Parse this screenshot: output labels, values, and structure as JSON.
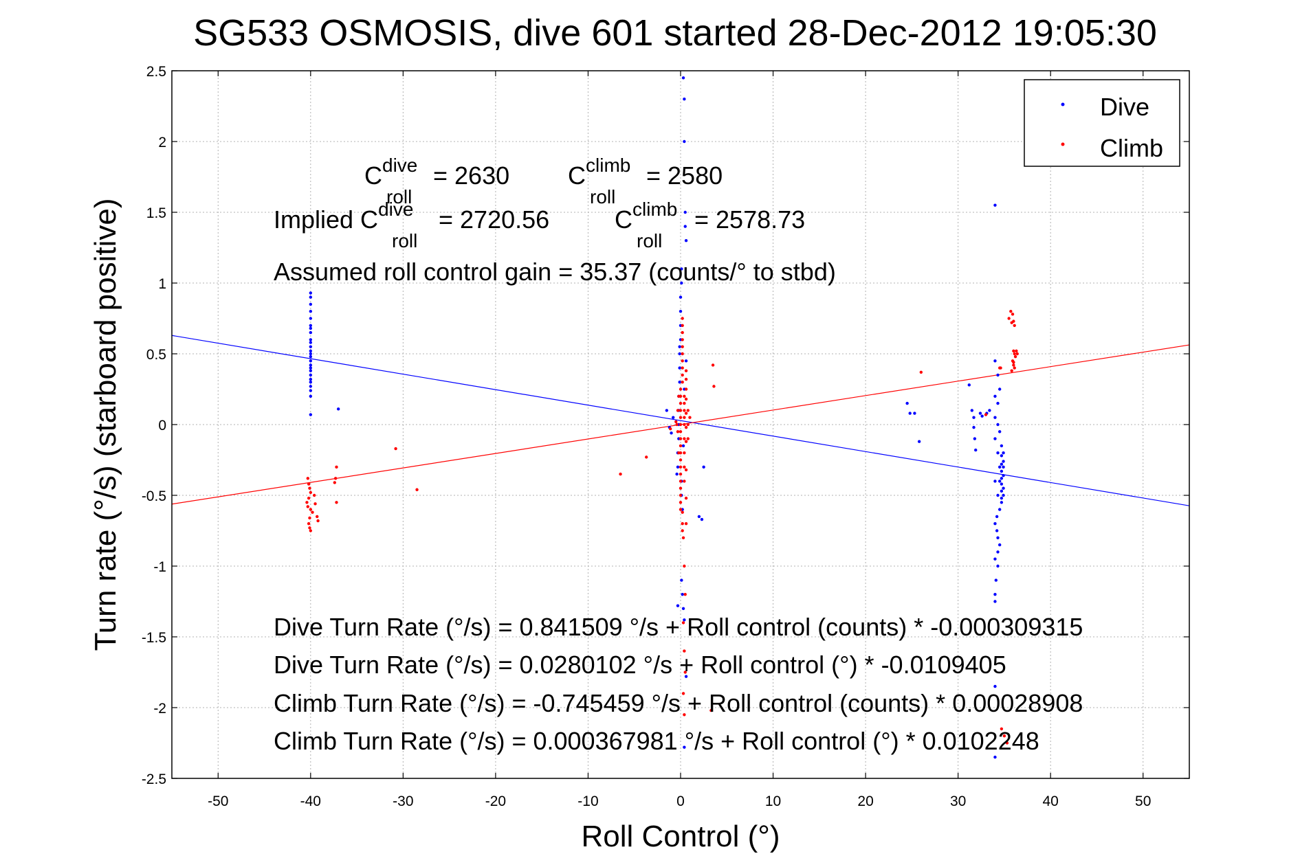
{
  "chart_data": {
    "type": "scatter",
    "title": "SG533 OSMOSIS, dive 601 started 28-Dec-2012 19:05:30",
    "xlabel": "Roll Control (°)",
    "ylabel": "Turn rate (°/s)  (starboard positive)",
    "xlim": [
      -55,
      55
    ],
    "ylim": [
      -2.5,
      2.5
    ],
    "xticks": [
      -50,
      -40,
      -30,
      -20,
      -10,
      0,
      10,
      20,
      30,
      40,
      50
    ],
    "yticks": [
      -2.5,
      -2,
      -1.5,
      -1,
      -0.5,
      0,
      0.5,
      1,
      1.5,
      2,
      2.5
    ],
    "ytick_labels": [
      "-2.5",
      "-2",
      "-1.5",
      "-1",
      "-0.5",
      "0",
      "0.5",
      "1",
      "1.5",
      "2",
      "2.5"
    ],
    "grid": true,
    "legend_position": "top-right",
    "series": [
      {
        "name": "Dive",
        "color": "#0000ff",
        "marker": "dot",
        "points": [
          [
            -40,
            0.93
          ],
          [
            -40,
            0.9
          ],
          [
            -40,
            0.85
          ],
          [
            -40,
            0.8
          ],
          [
            -40,
            0.75
          ],
          [
            -40,
            0.7
          ],
          [
            -40,
            0.68
          ],
          [
            -40,
            0.65
          ],
          [
            -40,
            0.6
          ],
          [
            -40,
            0.58
          ],
          [
            -40,
            0.55
          ],
          [
            -40,
            0.52
          ],
          [
            -40,
            0.5
          ],
          [
            -40,
            0.48
          ],
          [
            -40,
            0.45
          ],
          [
            -40,
            0.42
          ],
          [
            -40,
            0.4
          ],
          [
            -40,
            0.38
          ],
          [
            -40,
            0.35
          ],
          [
            -40,
            0.32
          ],
          [
            -40,
            0.3
          ],
          [
            -40,
            0.27
          ],
          [
            -40,
            0.24
          ],
          [
            -40,
            0.2
          ],
          [
            -40,
            0.07
          ],
          [
            -37,
            0.11
          ],
          [
            -1.5,
            0.1
          ],
          [
            -1.2,
            -0.02
          ],
          [
            -1.0,
            -0.06
          ],
          [
            -0.8,
            0.05
          ],
          [
            -0.4,
            -0.35
          ],
          [
            -0.3,
            -0.3
          ],
          [
            -0.3,
            -0.2
          ],
          [
            -0.2,
            -0.1
          ],
          [
            -0.2,
            0.0
          ],
          [
            -0.2,
            0.1
          ],
          [
            -0.2,
            0.2
          ],
          [
            -0.1,
            0.3
          ],
          [
            -0.1,
            0.4
          ],
          [
            -0.1,
            0.55
          ],
          [
            -0.1,
            0.5
          ],
          [
            0.0,
            0.6
          ],
          [
            0.0,
            0.7
          ],
          [
            0.0,
            0.8
          ],
          [
            0.0,
            0.9
          ],
          [
            0.1,
            1.0
          ],
          [
            0.1,
            1.1
          ],
          [
            0.1,
            -0.4
          ],
          [
            0.1,
            -0.5
          ],
          [
            0.2,
            -0.6
          ],
          [
            0.1,
            -1.1
          ],
          [
            0.2,
            -1.2
          ],
          [
            -0.3,
            -1.28
          ],
          [
            0.3,
            -1.3
          ],
          [
            0.4,
            -1.38
          ],
          [
            0.6,
            -1.78
          ],
          [
            0.4,
            -2.28
          ],
          [
            0.3,
            2.45
          ],
          [
            0.4,
            2.3
          ],
          [
            0.4,
            2.0
          ],
          [
            0.5,
            1.5
          ],
          [
            0.5,
            1.4
          ],
          [
            0.6,
            1.3
          ],
          [
            0.6,
            0.45
          ],
          [
            0.4,
            0.25
          ],
          [
            0.3,
            -0.15
          ],
          [
            2.5,
            -0.3
          ],
          [
            2.3,
            -0.67
          ],
          [
            2.0,
            -0.65
          ],
          [
            24.5,
            0.15
          ],
          [
            24.8,
            0.08
          ],
          [
            25.3,
            0.08
          ],
          [
            25.8,
            -0.12
          ],
          [
            31.2,
            0.28
          ],
          [
            31.5,
            0.1
          ],
          [
            31.7,
            0.05
          ],
          [
            31.7,
            -0.02
          ],
          [
            31.8,
            -0.1
          ],
          [
            31.9,
            -0.18
          ],
          [
            32.4,
            0.08
          ],
          [
            32.6,
            0.06
          ],
          [
            33.1,
            0.08
          ],
          [
            33.4,
            0.1
          ],
          [
            34.0,
            1.55
          ],
          [
            34.0,
            0.45
          ],
          [
            34.0,
            0.2
          ],
          [
            34.0,
            0.05
          ],
          [
            34.0,
            -0.1
          ],
          [
            34.0,
            -0.4
          ],
          [
            34.0,
            -0.7
          ],
          [
            34.0,
            -0.95
          ],
          [
            34.0,
            -1.2
          ],
          [
            34.0,
            -1.25
          ],
          [
            34.0,
            -1.85
          ],
          [
            34.0,
            -2.35
          ],
          [
            34.3,
            0.35
          ],
          [
            34.3,
            0.15
          ],
          [
            34.3,
            0.0
          ],
          [
            34.3,
            -0.2
          ],
          [
            34.3,
            -0.5
          ],
          [
            34.3,
            -0.8
          ],
          [
            34.5,
            0.25
          ],
          [
            34.5,
            -0.05
          ],
          [
            34.5,
            -0.3
          ],
          [
            34.5,
            -0.4
          ],
          [
            34.5,
            -0.6
          ],
          [
            34.5,
            -0.85
          ],
          [
            34.7,
            -0.15
          ],
          [
            34.7,
            -0.22
          ],
          [
            34.7,
            -0.28
          ],
          [
            34.7,
            -0.33
          ],
          [
            34.7,
            -0.38
          ],
          [
            34.7,
            -0.42
          ],
          [
            34.7,
            -0.47
          ],
          [
            34.7,
            -0.52
          ],
          [
            34.7,
            -0.55
          ],
          [
            34.9,
            -0.2
          ],
          [
            34.9,
            -0.26
          ],
          [
            34.9,
            -0.3
          ],
          [
            34.9,
            -0.36
          ],
          [
            34.9,
            -0.45
          ],
          [
            34.9,
            -0.5
          ],
          [
            34.2,
            -0.65
          ],
          [
            34.2,
            -0.75
          ],
          [
            34.3,
            -0.9
          ],
          [
            34.3,
            -1.0
          ],
          [
            34.1,
            -1.1
          ]
        ]
      },
      {
        "name": "Climb",
        "color": "#ff0000",
        "marker": "dot",
        "points": [
          [
            -40.3,
            -0.38
          ],
          [
            -40.2,
            -0.42
          ],
          [
            -40.1,
            -0.45
          ],
          [
            -40.0,
            -0.48
          ],
          [
            -40.2,
            -0.52
          ],
          [
            -40.4,
            -0.55
          ],
          [
            -40.3,
            -0.58
          ],
          [
            -40.0,
            -0.6
          ],
          [
            -39.8,
            -0.62
          ],
          [
            -40.1,
            -0.66
          ],
          [
            -40.2,
            -0.7
          ],
          [
            -40.1,
            -0.73
          ],
          [
            -40.0,
            -0.75
          ],
          [
            -39.6,
            -0.5
          ],
          [
            -39.5,
            -0.56
          ],
          [
            -39.3,
            -0.65
          ],
          [
            -39.2,
            -0.68
          ],
          [
            -37.2,
            -0.3
          ],
          [
            -37.3,
            -0.38
          ],
          [
            -37.4,
            -0.41
          ],
          [
            -37.2,
            -0.55
          ],
          [
            -30.8,
            -0.17
          ],
          [
            -28.5,
            -0.46
          ],
          [
            -6.5,
            -0.35
          ],
          [
            -3.7,
            -0.23
          ],
          [
            -1.1,
            -0.03
          ],
          [
            -0.5,
            0.02
          ],
          [
            0.0,
            0.0
          ],
          [
            0.0,
            0.05
          ],
          [
            0.0,
            0.1
          ],
          [
            0.0,
            0.15
          ],
          [
            0.0,
            0.2
          ],
          [
            0.0,
            0.25
          ],
          [
            0.0,
            -0.05
          ],
          [
            0.0,
            -0.1
          ],
          [
            0.0,
            -0.15
          ],
          [
            0.0,
            -0.2
          ],
          [
            0.0,
            -0.25
          ],
          [
            0.0,
            -0.3
          ],
          [
            0.0,
            -0.35
          ],
          [
            0.0,
            -0.4
          ],
          [
            0.0,
            -0.45
          ],
          [
            0.0,
            -0.5
          ],
          [
            0.0,
            -0.55
          ],
          [
            0.0,
            -0.6
          ],
          [
            0.2,
            0.3
          ],
          [
            0.2,
            0.35
          ],
          [
            0.2,
            0.4
          ],
          [
            0.2,
            0.45
          ],
          [
            0.2,
            0.5
          ],
          [
            0.2,
            0.55
          ],
          [
            0.2,
            0.6
          ],
          [
            0.2,
            0.65
          ],
          [
            0.2,
            0.7
          ],
          [
            0.2,
            0.75
          ],
          [
            0.2,
            -0.62
          ],
          [
            0.2,
            -0.7
          ],
          [
            0.2,
            -0.75
          ],
          [
            0.4,
            0.1
          ],
          [
            0.4,
            0.2
          ],
          [
            0.4,
            0.0
          ],
          [
            0.4,
            -0.1
          ],
          [
            0.4,
            -0.2
          ],
          [
            0.4,
            -0.3
          ],
          [
            0.4,
            -0.4
          ],
          [
            0.4,
            0.05
          ],
          [
            0.4,
            0.15
          ],
          [
            0.6,
            0.25
          ],
          [
            0.6,
            0.18
          ],
          [
            0.6,
            0.08
          ],
          [
            0.6,
            -0.02
          ],
          [
            0.6,
            -0.12
          ],
          [
            0.6,
            0.32
          ],
          [
            0.6,
            0.38
          ],
          [
            0.6,
            -0.32
          ],
          [
            0.6,
            -0.52
          ],
          [
            0.6,
            -0.7
          ],
          [
            -0.3,
            0.1
          ],
          [
            -0.3,
            -0.05
          ],
          [
            -0.2,
            0.2
          ],
          [
            -0.2,
            -0.2
          ],
          [
            -0.4,
            0.0
          ],
          [
            0.8,
            0.1
          ],
          [
            0.8,
            -0.1
          ],
          [
            0.8,
            0.0
          ],
          [
            1.0,
            0.05
          ],
          [
            0.3,
            -0.8
          ],
          [
            0.4,
            -1.0
          ],
          [
            0.5,
            -1.2
          ],
          [
            0.3,
            -1.4
          ],
          [
            0.4,
            -1.6
          ],
          [
            0.5,
            -1.75
          ],
          [
            0.3,
            -1.9
          ],
          [
            0.4,
            -2.05
          ],
          [
            3.3,
            -2.02
          ],
          [
            3.5,
            0.42
          ],
          [
            3.6,
            0.27
          ],
          [
            26.0,
            0.37
          ],
          [
            33.0,
            0.07
          ],
          [
            34.5,
            0.4
          ],
          [
            34.6,
            0.4
          ],
          [
            35.5,
            0.75
          ],
          [
            35.7,
            0.8
          ],
          [
            35.8,
            0.72
          ],
          [
            35.9,
            0.78
          ],
          [
            36.0,
            0.73
          ],
          [
            36.1,
            0.7
          ],
          [
            36.0,
            0.52
          ],
          [
            36.1,
            0.5
          ],
          [
            36.2,
            0.48
          ],
          [
            36.3,
            0.52
          ],
          [
            35.9,
            0.45
          ],
          [
            36.0,
            0.42
          ],
          [
            36.1,
            0.4
          ],
          [
            36.4,
            0.5
          ],
          [
            35.8,
            0.38
          ],
          [
            36.0,
            0.44
          ],
          [
            34.7,
            -2.15
          ],
          [
            35.0,
            -2.2
          ],
          [
            35.3,
            -2.25
          ]
        ]
      }
    ],
    "fit_lines": [
      {
        "series": "Dive",
        "color": "#0000ff",
        "intercept": 0.0280102,
        "slope": -0.0109405
      },
      {
        "series": "Climb",
        "color": "#ff0000",
        "intercept": 0.000367981,
        "slope": 0.0102248
      }
    ],
    "annotations": {
      "c_roll_dive": {
        "prefix": "C",
        "sup": "dive",
        "sub": "roll",
        "value": " = 2630"
      },
      "c_roll_climb": {
        "prefix": "C",
        "sup": "climb",
        "sub": "roll",
        "value": " = 2580"
      },
      "implied_dive": {
        "lead": "Implied C",
        "sup": "dive",
        "sub": "roll",
        "value": " = 2720.56"
      },
      "implied_climb": {
        "prefix": "C",
        "sup": "climb",
        "sub": "roll",
        "value": " = 2578.73"
      },
      "assumed_gain": "Assumed roll control gain = 35.37 (counts/° to stbd)",
      "equations": [
        "Dive Turn Rate (°/s) = 0.841509 °/s + Roll control (counts) * -0.000309315",
        "Dive Turn Rate (°/s) = 0.0280102 °/s + Roll control (°) * -0.0109405",
        "Climb Turn Rate (°/s) = -0.745459 °/s + Roll control (counts) * 0.00028908",
        "Climb Turn Rate (°/s) = 0.000367981 °/s + Roll control (°) * 0.0102248"
      ]
    }
  }
}
